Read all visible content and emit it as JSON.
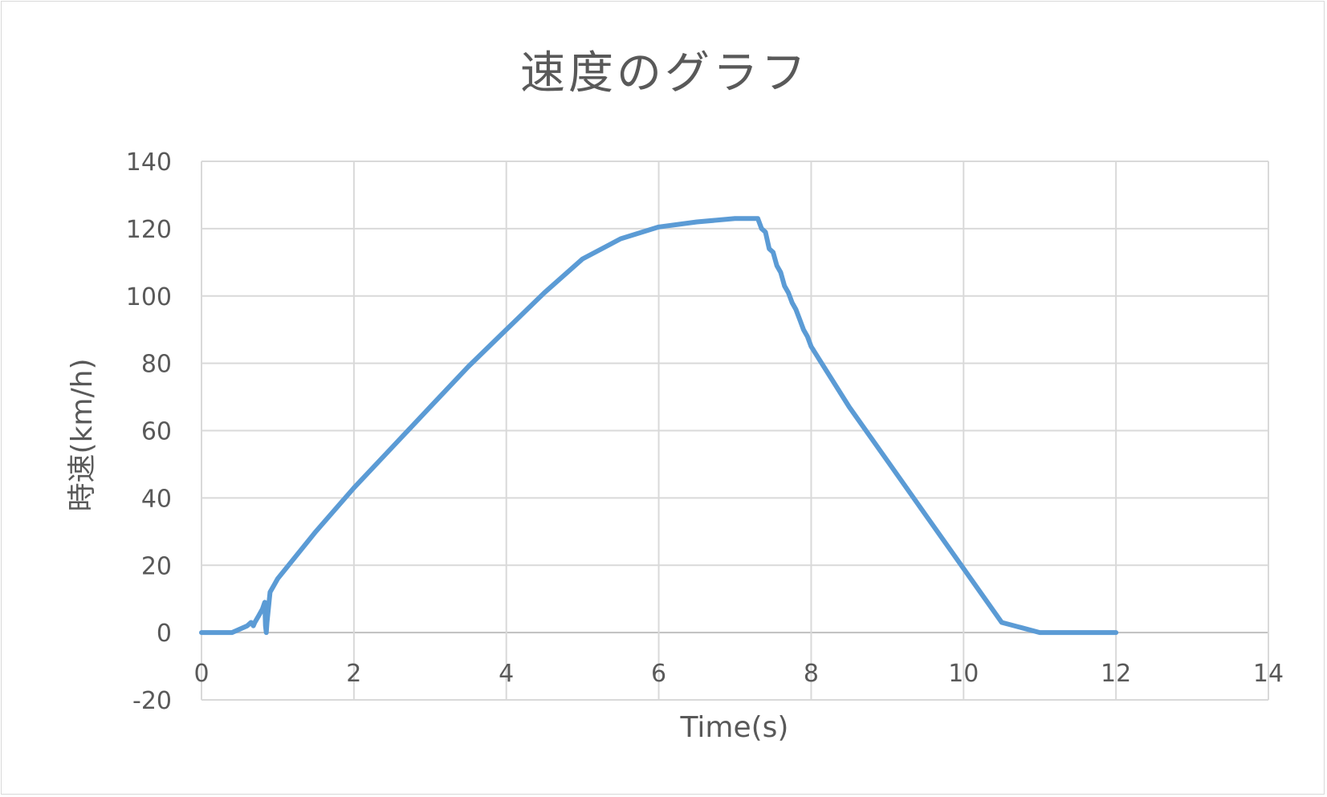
{
  "chart_data": {
    "type": "line",
    "title": "速度のグラフ",
    "xlabel": "Time(s)",
    "ylabel": "時速(km/h)",
    "xlim": [
      0,
      14
    ],
    "ylim": [
      -20,
      140
    ],
    "x_ticks": [
      0,
      2,
      4,
      6,
      8,
      10,
      12,
      14
    ],
    "y_ticks": [
      -20,
      0,
      20,
      40,
      60,
      80,
      100,
      120,
      140
    ],
    "grid": true,
    "legend": "none",
    "series": [
      {
        "color": "#5b9bd5",
        "x": [
          0,
          0.4,
          0.6,
          0.65,
          0.68,
          0.7,
          0.75,
          0.8,
          0.83,
          0.84,
          0.85,
          0.86,
          0.9,
          0.95,
          1.0,
          1.5,
          2.0,
          2.5,
          3.0,
          3.5,
          4.0,
          4.5,
          5.0,
          5.5,
          6.0,
          6.5,
          7.0,
          7.3,
          7.35,
          7.4,
          7.45,
          7.5,
          7.55,
          7.6,
          7.65,
          7.7,
          7.75,
          7.8,
          7.85,
          7.9,
          7.95,
          8.0,
          8.5,
          9.0,
          9.5,
          10.0,
          10.5,
          11.0,
          11.3,
          11.35,
          11.5,
          12.0
        ],
        "y": [
          0,
          0,
          2,
          3,
          2,
          3,
          5,
          7,
          9,
          2,
          0,
          3,
          12,
          14,
          16,
          30,
          43,
          55,
          67,
          79,
          90,
          101,
          111,
          117,
          120.5,
          122,
          123,
          123,
          120,
          119,
          114,
          113,
          109,
          107,
          103,
          101,
          98,
          96,
          93,
          90,
          88,
          85,
          67,
          51,
          35,
          19,
          3,
          0,
          0,
          0,
          0,
          0
        ]
      }
    ]
  }
}
